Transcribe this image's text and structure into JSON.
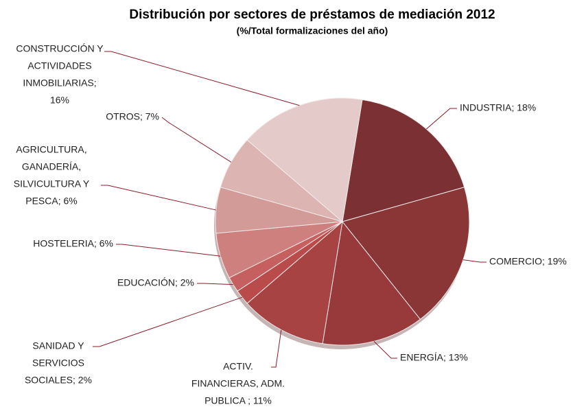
{
  "chart_data": {
    "type": "pie",
    "title": "Distribución por sectores de préstamos de mediación 2012",
    "subtitle": "(%/Total  formalizaciones del año)",
    "categories": [
      [
        "INDUSTRIA;  18%"
      ],
      [
        "COMERCIO;  19%"
      ],
      [
        "ENERGÍA;  13%"
      ],
      [
        "ACTIV.",
        "FINANCIERAS,  ADM.",
        "PUBLICA ; 11%"
      ],
      [
        "SANIDAD Y",
        "SERVICIOS",
        "SOCIALES; 2%"
      ],
      [
        "EDUCACIÓN;  2%"
      ],
      [
        "HOSTELERIA; 6%"
      ],
      [
        "AGRICULTURA,",
        "GANADERÍA,",
        "SILVICULTURA  Y",
        "PESCA; 6%"
      ],
      [
        "OTROS; 7%"
      ],
      [
        "CONSTRUCCIÓN  Y",
        "ACTIVIDADES",
        "INMOBILIARIAS;",
        "16%"
      ]
    ],
    "values": [
      18,
      19,
      13,
      11,
      2,
      2,
      6,
      6,
      7,
      16
    ],
    "colors": [
      "#7b3033",
      "#8a3536",
      "#983a3c",
      "#a84343",
      "#b94b4b",
      "#c66060",
      "#cd807e",
      "#d39b98",
      "#dcb4b2",
      "#e4cbca"
    ]
  }
}
